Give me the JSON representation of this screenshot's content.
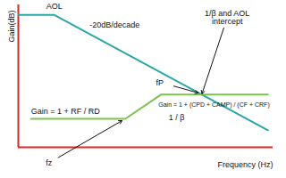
{
  "chart_data": {
    "type": "line",
    "xlabel": "Frequency (Hz)",
    "ylabel": "Gain(dB)",
    "xlim": [
      0,
      100
    ],
    "ylim": [
      0,
      100
    ],
    "tick_labels": false,
    "series": [
      {
        "color": "#2aa7a7",
        "x": [
          0,
          14,
          98
        ],
        "values": [
          93,
          93,
          12
        ]
      },
      {
        "color": "#7dc24a",
        "x": [
          5,
          42,
          56,
          98
        ],
        "values": [
          20,
          20,
          37,
          37
        ]
      }
    ],
    "annotations": [
      {
        "text": "AOL",
        "x": 11,
        "y": 99,
        "anchor": "start"
      },
      {
        "text": "-20dB/decade",
        "x": 28,
        "y": 86,
        "anchor": "start"
      },
      {
        "text": "1/β and AOL\nintercept",
        "x": 82,
        "y": 91,
        "anchor": "middle",
        "arrow_to": [
          72,
          37
        ]
      },
      {
        "text": "fP",
        "x": 57,
        "y": 45,
        "anchor": "end",
        "arrow_to": [
          71,
          38
        ]
      },
      {
        "text": "Gain = 1 + (CPD + CAMP) / (CF + CRF)",
        "x": 55,
        "y": 30,
        "anchor": "start"
      },
      {
        "text": "1 / β",
        "x": 59,
        "y": 21,
        "anchor": "start"
      },
      {
        "text": "Gain = 1 + RF / RD",
        "x": 5,
        "y": 25,
        "anchor": "start"
      },
      {
        "text": "fz",
        "x": 12,
        "y": -11,
        "anchor": "middle",
        "arrow_to": [
          41,
          19
        ]
      }
    ]
  }
}
